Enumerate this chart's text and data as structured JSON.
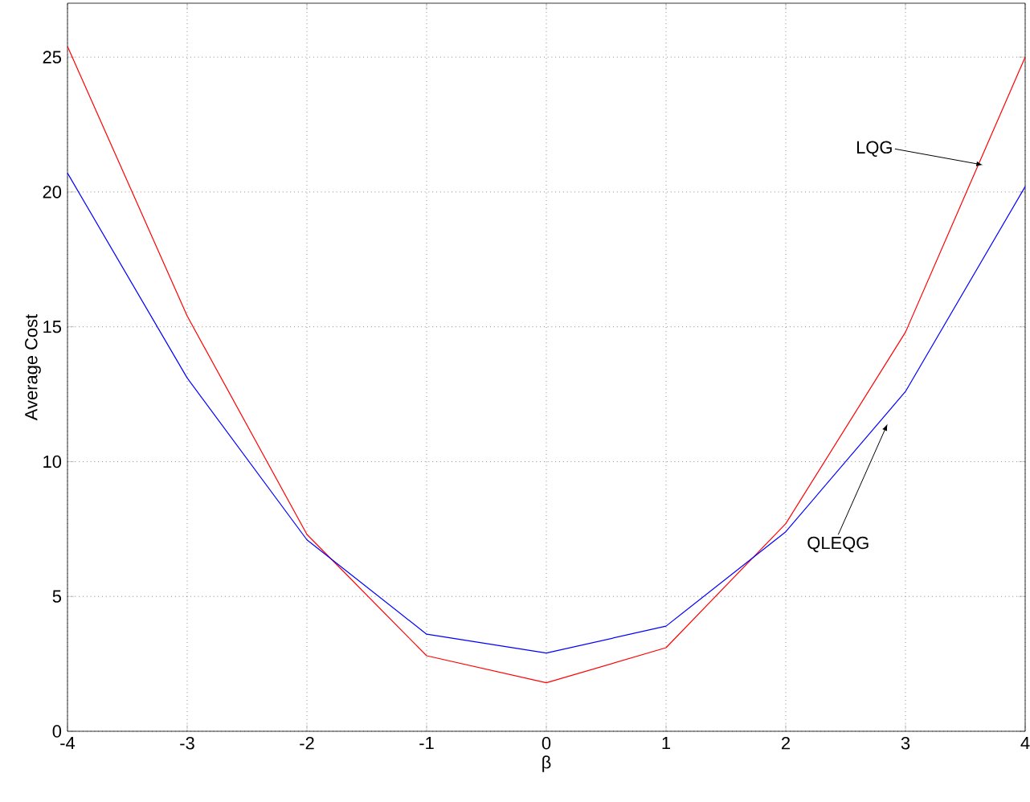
{
  "chart_data": {
    "type": "line",
    "xlabel": "β",
    "ylabel": "Average Cost",
    "x": [
      -4,
      -3,
      -2,
      -1,
      0,
      1,
      2,
      3,
      4
    ],
    "series": [
      {
        "color": "#ff0000",
        "values": [
          25.4,
          15.4,
          7.3,
          2.8,
          1.8,
          3.1,
          7.7,
          14.8,
          25.0
        ]
      },
      {
        "color": "#0000ff",
        "values": [
          20.7,
          13.1,
          7.1,
          3.6,
          2.9,
          3.9,
          7.4,
          12.6,
          20.2
        ]
      }
    ],
    "annotations": [
      {
        "text": "LQG",
        "x": 3.65,
        "y": 21
      },
      {
        "text": "QLEQG",
        "x": 2.85,
        "y": 11.4
      }
    ],
    "xlim": [
      -4,
      4
    ],
    "ylim": [
      0,
      27
    ],
    "xticks": [
      -4,
      -3,
      -2,
      -1,
      0,
      1,
      2,
      3,
      4
    ],
    "yticks": [
      0,
      5,
      10,
      15,
      20,
      25
    ],
    "grid": true,
    "marker": "none",
    "line_style": "solid"
  }
}
